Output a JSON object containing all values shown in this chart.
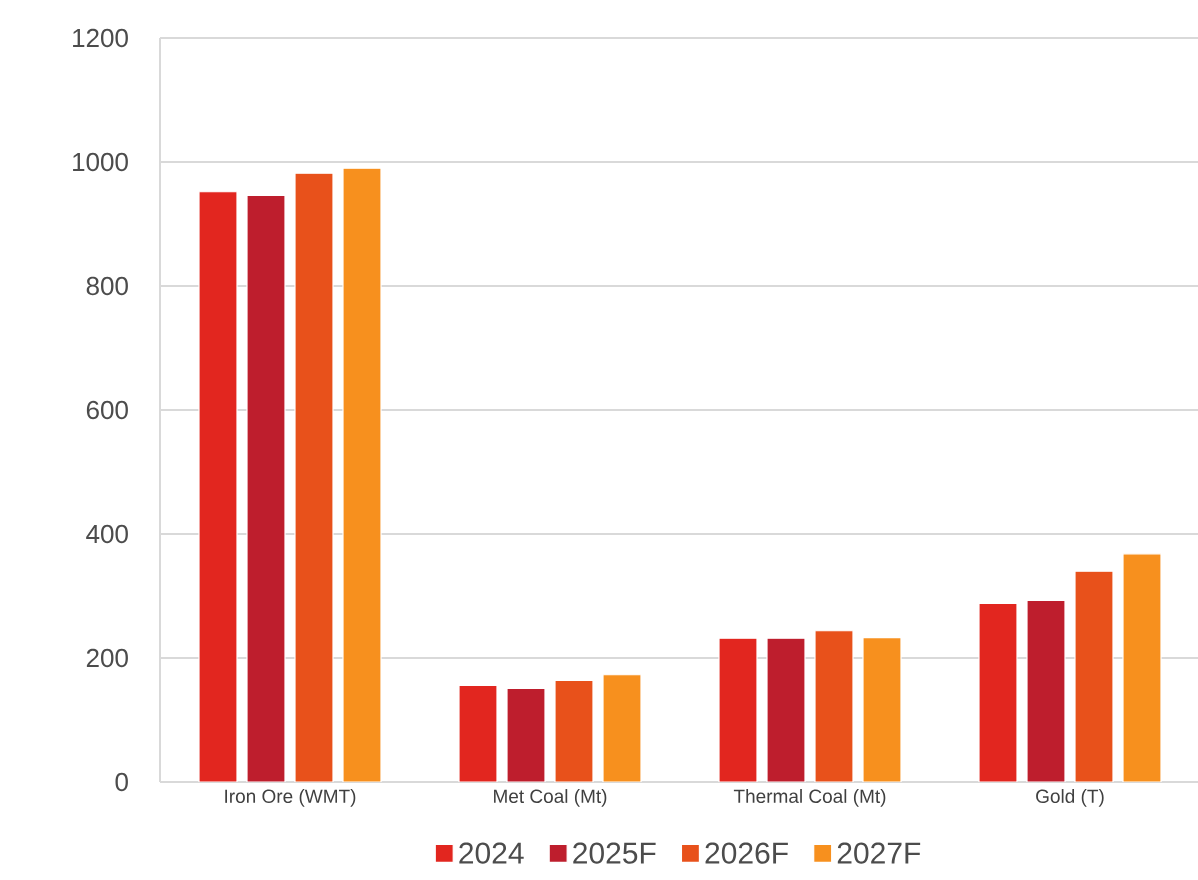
{
  "chart_data": {
    "type": "bar",
    "categories": [
      "Iron Ore (WMT)",
      "Met Coal (Mt)",
      "Thermal Coal (Mt)",
      "Gold (T)"
    ],
    "series": [
      {
        "name": "2024",
        "color": "#e2261f",
        "values": [
          952,
          156,
          232,
          288
        ]
      },
      {
        "name": "2025F",
        "color": "#be1e2d",
        "values": [
          946,
          151,
          232,
          293
        ]
      },
      {
        "name": "2026F",
        "color": "#e8511b",
        "values": [
          982,
          164,
          244,
          340
        ]
      },
      {
        "name": "2027F",
        "color": "#f7901e",
        "values": [
          990,
          173,
          233,
          368
        ]
      }
    ],
    "ylim": [
      0,
      1200
    ],
    "yticks": [
      0,
      200,
      400,
      600,
      800,
      1000,
      1200
    ],
    "grid": "y",
    "legend": "bottom"
  }
}
